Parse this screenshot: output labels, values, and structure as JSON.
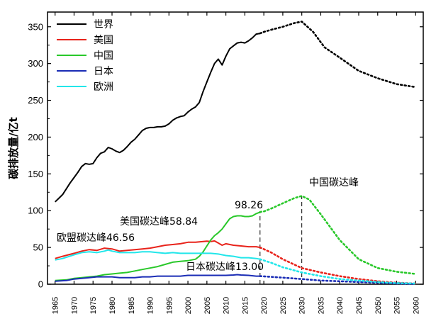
{
  "chart_data": {
    "type": "line",
    "xlabel": "",
    "ylabel": "碳排放量/亿t",
    "xlim": [
      1963,
      2062
    ],
    "ylim": [
      0,
      370
    ],
    "x_ticks": [
      "1965",
      "1970",
      "1975",
      "1980",
      "1985",
      "1990",
      "1995",
      "2000",
      "2005",
      "2010",
      "2015",
      "2020",
      "2025",
      "2030",
      "2035",
      "2040",
      "2045",
      "2050",
      "2055",
      "2060"
    ],
    "y_ticks": [
      "0",
      "50",
      "100",
      "150",
      "200",
      "250",
      "300",
      "350"
    ],
    "legend_position": "top-left",
    "grid": false,
    "series": [
      {
        "name": "世界",
        "color": "#000000",
        "historical": {
          "x": [
            1965,
            1966,
            1967,
            1968,
            1969,
            1970,
            1971,
            1972,
            1973,
            1974,
            1975,
            1976,
            1977,
            1978,
            1979,
            1980,
            1981,
            1982,
            1983,
            1984,
            1985,
            1986,
            1987,
            1988,
            1989,
            1990,
            1991,
            1992,
            1993,
            1994,
            1995,
            1996,
            1997,
            1998,
            1999,
            2000,
            2001,
            2002,
            2003,
            2004,
            2005,
            2006,
            2007,
            2008,
            2009,
            2010,
            2011,
            2012,
            2013,
            2014,
            2015,
            2016,
            2017,
            2018,
            2019
          ],
          "y": [
            112,
            117,
            122,
            130,
            138,
            145,
            152,
            160,
            164,
            163,
            164,
            172,
            178,
            180,
            186,
            184,
            181,
            179,
            182,
            187,
            193,
            197,
            203,
            209,
            212,
            213,
            213,
            214,
            214,
            215,
            218,
            223,
            226,
            228,
            229,
            234,
            238,
            241,
            247,
            262,
            275,
            288,
            300,
            306,
            298,
            310,
            320,
            324,
            328,
            329,
            328,
            331,
            335,
            340,
            341
          ]
        },
        "projection": {
          "x": [
            2019,
            2020,
            2022,
            2025,
            2028,
            2030,
            2033,
            2036,
            2040,
            2045,
            2050,
            2055,
            2060
          ],
          "y": [
            341,
            343,
            346,
            350,
            355,
            357,
            343,
            322,
            308,
            290,
            280,
            272,
            268
          ]
        }
      },
      {
        "name": "美国",
        "color": "#e8231b",
        "historical": {
          "x": [
            1965,
            1967,
            1970,
            1972,
            1974,
            1976,
            1978,
            1980,
            1982,
            1984,
            1986,
            1988,
            1990,
            1992,
            1994,
            1996,
            1998,
            2000,
            2002,
            2004,
            2005,
            2006,
            2007,
            2008,
            2009,
            2010,
            2012,
            2014,
            2016,
            2018,
            2019
          ],
          "y": [
            35,
            38,
            42,
            45,
            47,
            46,
            49,
            48,
            45,
            46,
            47,
            48,
            49,
            51,
            53,
            54,
            55,
            57,
            57,
            58,
            58.5,
            58,
            58.84,
            56,
            53,
            55,
            53,
            52,
            51,
            51,
            50
          ]
        },
        "projection": {
          "x": [
            2019,
            2022,
            2025,
            2030,
            2035,
            2040,
            2045,
            2050,
            2055,
            2060
          ],
          "y": [
            50,
            43,
            34,
            22,
            16,
            11,
            7,
            4,
            2,
            1
          ]
        },
        "peak_label": "美国碳达峰58.84"
      },
      {
        "name": "中国",
        "color": "#29c82a",
        "historical": {
          "x": [
            1965,
            1968,
            1970,
            1972,
            1974,
            1976,
            1978,
            1980,
            1982,
            1984,
            1986,
            1988,
            1990,
            1992,
            1994,
            1996,
            1998,
            2000,
            2002,
            2003,
            2004,
            2005,
            2006,
            2007,
            2008,
            2009,
            2010,
            2011,
            2012,
            2013,
            2014,
            2015,
            2016,
            2017,
            2018,
            2019
          ],
          "y": [
            5,
            6,
            8,
            9,
            10,
            11,
            13,
            14,
            15,
            16,
            18,
            20,
            22,
            24,
            27,
            30,
            31,
            32,
            34,
            38,
            44,
            52,
            60,
            66,
            70,
            75,
            82,
            89,
            92,
            93,
            93,
            92,
            92,
            93,
            96,
            98
          ]
        },
        "projection": {
          "x": [
            2019,
            2020,
            2022,
            2025,
            2028,
            2030,
            2032,
            2035,
            2040,
            2045,
            2050,
            2055,
            2060
          ],
          "y": [
            98.26,
            99,
            103,
            110,
            117,
            120,
            115,
            95,
            60,
            34,
            22,
            17,
            14
          ]
        },
        "peak_label": "中国碳达峰",
        "value_label": "98.26"
      },
      {
        "name": "日本",
        "color": "#1a2cb5",
        "historical": {
          "x": [
            1965,
            1968,
            1970,
            1972,
            1974,
            1976,
            1978,
            1980,
            1982,
            1984,
            1986,
            1988,
            1990,
            1992,
            1994,
            1996,
            1998,
            2000,
            2002,
            2004,
            2006,
            2008,
            2010,
            2012,
            2013,
            2014,
            2016,
            2018,
            2019
          ],
          "y": [
            4,
            5,
            7,
            8,
            9,
            10,
            10,
            10,
            9,
            9,
            9,
            10,
            10,
            11,
            11,
            11,
            11,
            12,
            12,
            12,
            12,
            12,
            12,
            12.5,
            13,
            12.5,
            12,
            11,
            11
          ]
        },
        "projection": {
          "x": [
            2019,
            2025,
            2030,
            2035,
            2040,
            2045,
            2050,
            2055,
            2060
          ],
          "y": [
            11,
            9,
            7,
            5,
            4,
            3,
            2,
            1,
            0.5
          ]
        },
        "peak_label": "日本碳达峰13.00"
      },
      {
        "name": "欧洲",
        "color": "#22e6ea",
        "historical": {
          "x": [
            1965,
            1967,
            1970,
            1972,
            1974,
            1976,
            1978,
            1979,
            1980,
            1982,
            1984,
            1986,
            1988,
            1990,
            1992,
            1994,
            1996,
            1998,
            2000,
            2002,
            2004,
            2006,
            2008,
            2010,
            2012,
            2014,
            2016,
            2018,
            2019
          ],
          "y": [
            33,
            35,
            40,
            43,
            44,
            43,
            45,
            46.56,
            45,
            43,
            43,
            43,
            44,
            44,
            43,
            42,
            43,
            42,
            42,
            42,
            42,
            42,
            41,
            39,
            38,
            36,
            36,
            35,
            34
          ]
        },
        "projection": {
          "x": [
            2019,
            2022,
            2025,
            2030,
            2035,
            2040,
            2045,
            2050,
            2055,
            2060
          ],
          "y": [
            34,
            29,
            23,
            16,
            11,
            7,
            5,
            3,
            1.5,
            1
          ]
        },
        "peak_label": "欧盟碳达峰46.56"
      }
    ],
    "reference_lines": [
      {
        "x": 2019,
        "y_top": 98.26
      },
      {
        "x": 2030,
        "y_top": 120
      }
    ]
  }
}
